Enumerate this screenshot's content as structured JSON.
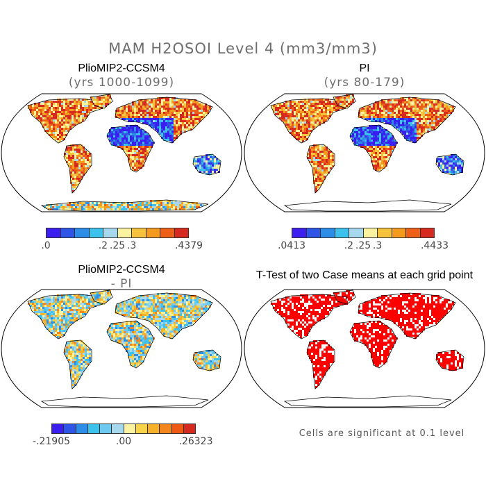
{
  "main_title": "MAM H2OSOI Level 4 (mm3/mm3)",
  "panels": {
    "top_left": {
      "title": "PlioMIP2-CCSM4",
      "subtitle": "(yrs 1000-1099)"
    },
    "top_right": {
      "title": "PI",
      "subtitle": "(yrs 80-179)"
    },
    "bottom_left": {
      "title": "PlioMIP2-CCSM4",
      "subtitle": "- PI"
    },
    "bottom_right": {
      "title": "T-Test of two Case means at each grid point"
    }
  },
  "colorbars": {
    "top_left": {
      "colors": [
        "#3a1ff0",
        "#2f55e6",
        "#2e8de6",
        "#3cc2ec",
        "#a6d8ee",
        "#fbf3a0",
        "#f6c13b",
        "#f39a1f",
        "#ee5f17",
        "#d62a20"
      ],
      "ticks": [
        ".0",
        ".2",
        ".25",
        ".3",
        ".4379"
      ],
      "tick_positions": [
        0,
        0.4,
        0.5,
        0.6,
        1.0
      ]
    },
    "top_right": {
      "colors": [
        "#3a1ff0",
        "#2f55e6",
        "#2e8de6",
        "#3cc2ec",
        "#a6d8ee",
        "#fbf3a0",
        "#f6c13b",
        "#f39a1f",
        "#ee5f17",
        "#d62a20"
      ],
      "ticks": [
        ".0413",
        ".2",
        ".25",
        ".3",
        ".4433"
      ],
      "tick_positions": [
        0,
        0.4,
        0.5,
        0.6,
        1.0
      ]
    },
    "bottom_left": {
      "colors": [
        "#3a1ff0",
        "#2f55e6",
        "#2e8de6",
        "#3cc2ec",
        "#6dc9ef",
        "#a6d8ee",
        "#fbf3a0",
        "#f6d34a",
        "#f6b02a",
        "#f3871e",
        "#ee5a16",
        "#d62a20"
      ],
      "ticks": [
        "-.21905",
        ".00",
        ".26323"
      ],
      "tick_positions": [
        0,
        0.5,
        1.0
      ]
    }
  },
  "footnote": "Cells are significant at 0.1 level"
}
